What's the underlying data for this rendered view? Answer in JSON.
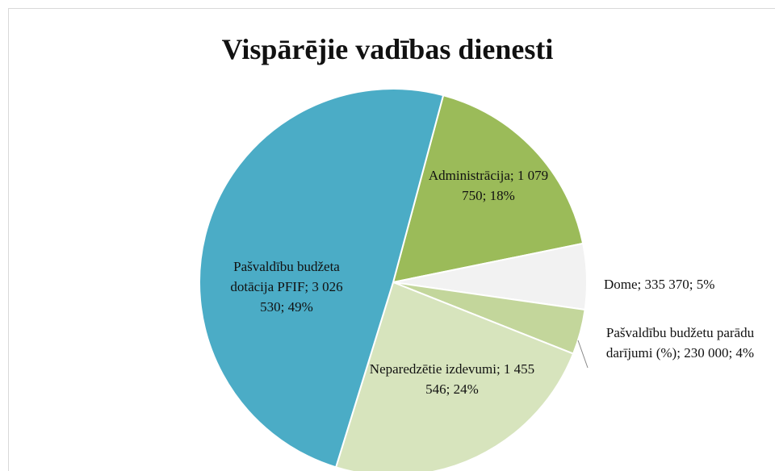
{
  "chart_data": {
    "type": "pie",
    "title": "Vispārējie vadības dienesti",
    "categories": [
      "Administrācija",
      "Dome",
      "Pašvaldību budžetu parādu darījumi (%)",
      "Neparedzētie izdevumi",
      "Pašvaldību budžeta dotācija PFIF"
    ],
    "values": [
      1079750,
      335370,
      230000,
      1455546,
      3026530
    ],
    "value_labels": [
      "Administrācija; 1 079 750; 18%",
      "Dome; 335 370; 5%",
      "Pašvaldību budžetu parādu darījumi (%); 230 000; 4%",
      "Neparedzētie izdevumi; 1 455 546; 24%",
      "Pašvaldību budžeta dotācija PFIF; 3 026 530; 49%"
    ],
    "colors": [
      "#9bbb59",
      "#f2f2f2",
      "#c3d69b",
      "#d7e4bd",
      "#4bacc6"
    ]
  }
}
